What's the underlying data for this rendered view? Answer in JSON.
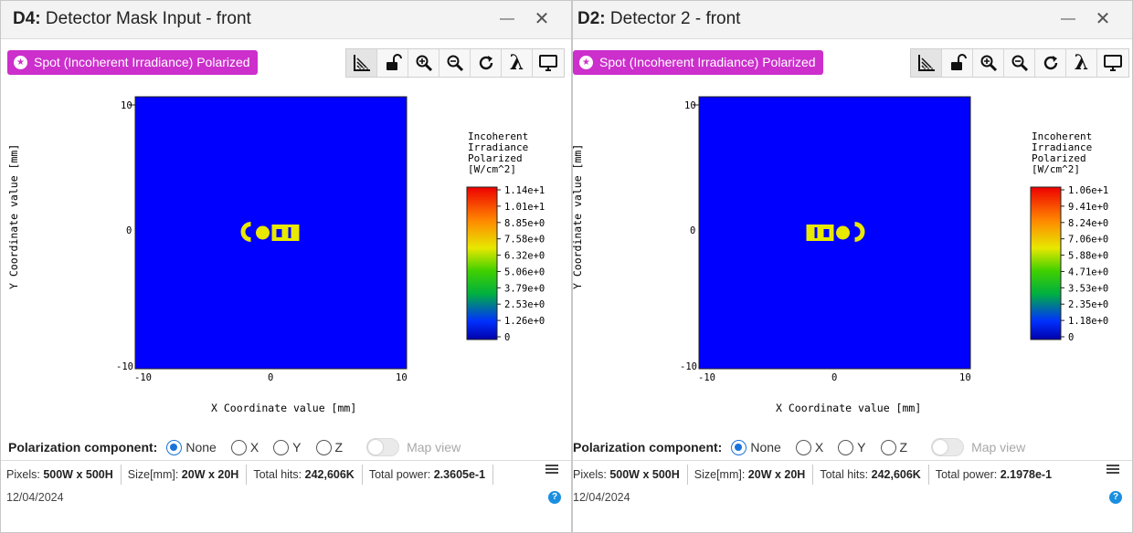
{
  "panels": [
    {
      "title_prefix": "D4:",
      "title_text": " Detector Mask Input - front",
      "minimize_icon": "minimize-icon",
      "close_icon": "close-icon",
      "spot_button_label": "Spot (Incoherent Irradiance) Polarized",
      "toolbar_icons": [
        "axes-ruler-icon",
        "unlock-icon",
        "zoom-in-icon",
        "zoom-out-icon",
        "refresh-icon",
        "lambda-icon",
        "monitor-icon"
      ],
      "plot": {
        "x_axis_label": "X Coordinate value [mm]",
        "y_axis_label": "Y Coordinate value [mm]",
        "x_ticks": [
          "-10",
          "0",
          "10"
        ],
        "y_ticks": [
          "10",
          "0",
          "-10"
        ],
        "colorbar_title": [
          "Incoherent",
          "Irradiance",
          "Polarized",
          "[W/cm^2]"
        ],
        "colorbar_ticks": [
          "1.14e+1",
          "1.01e+1",
          "8.85e+0",
          "7.58e+0",
          "6.32e+0",
          "5.06e+0",
          "3.79e+0",
          "2.53e+0",
          "1.26e+0",
          "0"
        ],
        "background_color": "#0000ff",
        "spot_color": "#e8e800",
        "spot_orientation": "normal"
      },
      "polarization_label": "Polarization component:",
      "radios": [
        {
          "label": "None",
          "selected": true
        },
        {
          "label": "X",
          "selected": false
        },
        {
          "label": "Y",
          "selected": false
        },
        {
          "label": "Z",
          "selected": false
        }
      ],
      "map_view_label": "Map view",
      "status": {
        "pixels_label": "Pixels:",
        "pixels_value": "500W x 500H",
        "size_label": "Size[mm]:",
        "size_value": "20W x 20H",
        "hits_label": "Total hits:",
        "hits_value": "242,606K",
        "power_label": "Total power:",
        "power_value": "2.3605e-1"
      },
      "date": "12/04/2024",
      "help_glyph": "?"
    },
    {
      "title_prefix": "D2:",
      "title_text": " Detector 2 - front",
      "minimize_icon": "minimize-icon",
      "close_icon": "close-icon",
      "spot_button_label": "Spot (Incoherent Irradiance) Polarized",
      "toolbar_icons": [
        "axes-ruler-icon",
        "unlock-icon",
        "zoom-in-icon",
        "zoom-out-icon",
        "refresh-icon",
        "lambda-icon",
        "monitor-icon"
      ],
      "plot": {
        "x_axis_label": "X Coordinate value [mm]",
        "y_axis_label": "Y Coordinate value [mm]",
        "x_ticks": [
          "-10",
          "0",
          "10"
        ],
        "y_ticks": [
          "10",
          "0",
          "-10"
        ],
        "colorbar_title": [
          "Incoherent",
          "Irradiance",
          "Polarized",
          "[W/cm^2]"
        ],
        "colorbar_ticks": [
          "1.06e+1",
          "9.41e+0",
          "8.24e+0",
          "7.06e+0",
          "5.88e+0",
          "4.71e+0",
          "3.53e+0",
          "2.35e+0",
          "1.18e+0",
          "0"
        ],
        "background_color": "#0000ff",
        "spot_color": "#e8e800",
        "spot_orientation": "mirrored"
      },
      "polarization_label": "Polarization component:",
      "radios": [
        {
          "label": "None",
          "selected": true
        },
        {
          "label": "X",
          "selected": false
        },
        {
          "label": "Y",
          "selected": false
        },
        {
          "label": "Z",
          "selected": false
        }
      ],
      "map_view_label": "Map view",
      "status": {
        "pixels_label": "Pixels:",
        "pixels_value": "500W x 500H",
        "size_label": "Size[mm]:",
        "size_value": "20W x 20H",
        "hits_label": "Total hits:",
        "hits_value": "242,606K",
        "power_label": "Total power:",
        "power_value": "2.1978e-1"
      },
      "date": "12/04/2024",
      "help_glyph": "?"
    }
  ]
}
